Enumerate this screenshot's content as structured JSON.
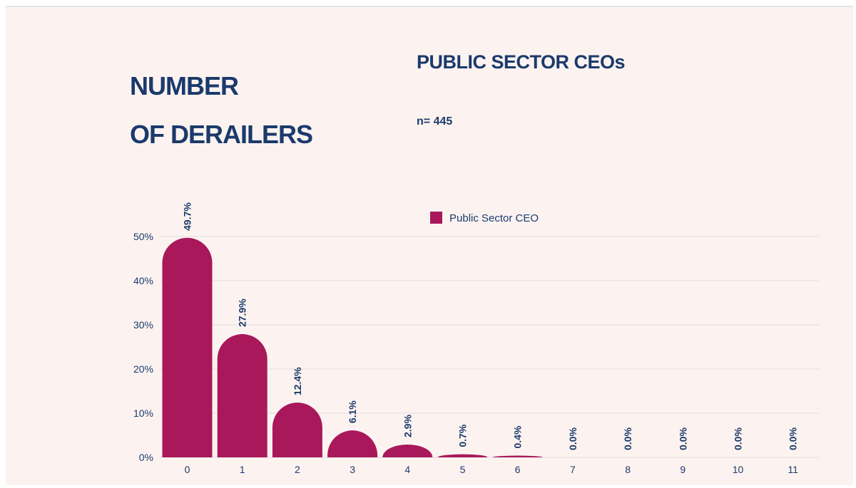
{
  "title_lines": [
    "NUMBER",
    "OF DERAILERS"
  ],
  "subtitle": "PUBLIC SECTOR CEOs",
  "sample_size": "n= 445",
  "colors": {
    "bar": "#a8185a",
    "text": "#1b3a6b",
    "grid": "#e2dede",
    "background": "#fcf3f1"
  },
  "chart_data": {
    "type": "bar",
    "title": "NUMBER OF DERAILERS",
    "subtitle": "PUBLIC SECTOR CEOs",
    "xlabel": "",
    "ylabel": "",
    "categories": [
      "0",
      "1",
      "2",
      "3",
      "4",
      "5",
      "6",
      "7",
      "8",
      "9",
      "10",
      "11"
    ],
    "series": [
      {
        "name": "Public Sector CEO",
        "values": [
          49.7,
          27.9,
          12.4,
          6.1,
          2.9,
          0.7,
          0.4,
          0.0,
          0.0,
          0.0,
          0.0,
          0.0
        ]
      }
    ],
    "data_labels": [
      "49.7%",
      "27.9%",
      "12.4%",
      "6.1%",
      "2.9%",
      "0.7%",
      "0.4%",
      "0.0%",
      "0.0%",
      "0.0%",
      "0.0%",
      "0.0%"
    ],
    "y_ticks": [
      0,
      10,
      20,
      30,
      40,
      50
    ],
    "y_tick_labels": [
      "0%",
      "10%",
      "20%",
      "30%",
      "40%",
      "50%"
    ],
    "ylim": [
      0,
      50
    ],
    "grid": true,
    "legend": {
      "position": "top-center",
      "label": "Public Sector CEO"
    }
  }
}
